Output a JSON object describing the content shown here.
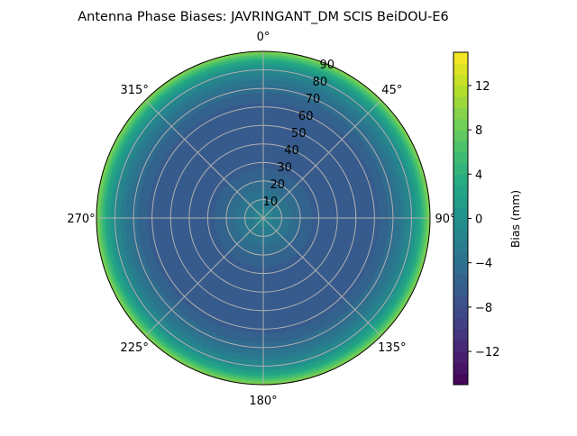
{
  "chart_data": {
    "type": "heatmap",
    "subtype": "polar-contour",
    "title": "Antenna Phase Biases: JAVRINGANT_DM   SCIS BeiDOU-E6",
    "colormap": "viridis",
    "colorbar": {
      "label": "Bias (mm)",
      "range": [
        -15,
        15
      ],
      "level_step": 1,
      "ticks": [
        -12,
        -8,
        -4,
        0,
        4,
        8,
        12
      ],
      "tick_labels": [
        "−12",
        "−8",
        "−4",
        "0",
        "4",
        "8",
        "12"
      ]
    },
    "radial_axis": {
      "range": [
        0,
        90
      ],
      "ticks": [
        10,
        20,
        30,
        40,
        50,
        60,
        70,
        80,
        90
      ],
      "tick_labels": [
        "10",
        "20",
        "30",
        "40",
        "50",
        "60",
        "70",
        "80",
        "90"
      ]
    },
    "angular_axis": {
      "zero_location": "top",
      "direction": "clockwise",
      "ticks": [
        0,
        45,
        90,
        135,
        180,
        225,
        270,
        315
      ],
      "tick_labels": [
        "0°",
        "45°",
        "90°",
        "135°",
        "180°",
        "225°",
        "270°",
        "315°"
      ]
    },
    "grid": true,
    "profile": {
      "zenith_deg": [
        0,
        10,
        20,
        30,
        40,
        50,
        60,
        70,
        80,
        85,
        90
      ],
      "bias_mm": [
        -1,
        -3,
        -5,
        -6.5,
        -7,
        -7,
        -6.5,
        -4.5,
        -1,
        3,
        10
      ]
    }
  }
}
